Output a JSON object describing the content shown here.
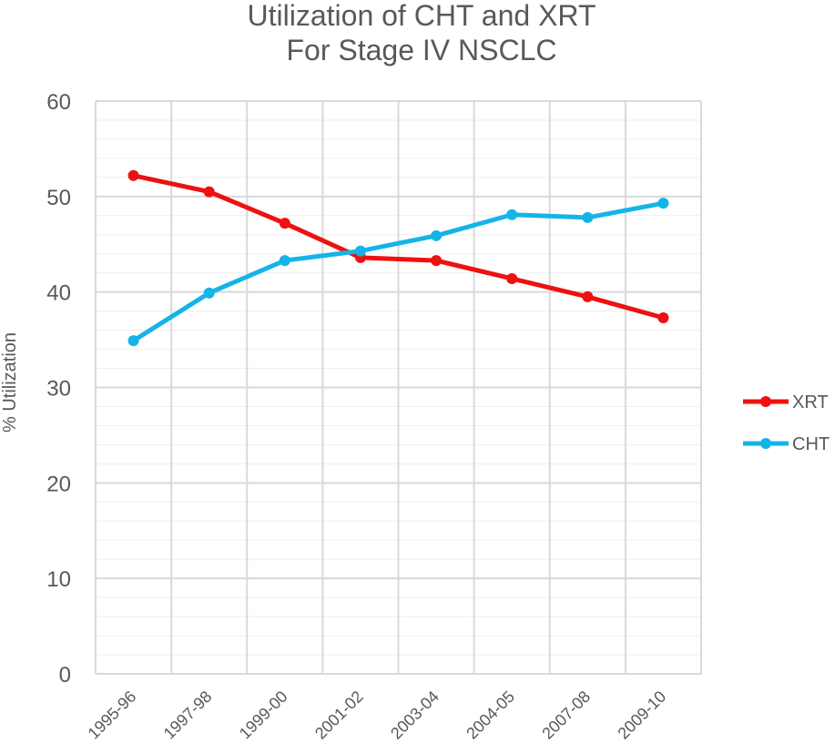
{
  "chart_data": {
    "type": "line",
    "title": "Utilization of CHT and XRT",
    "subtitle": "For Stage IV NSCLC",
    "xlabel": "",
    "ylabel": "% Utilization",
    "categories": [
      "1995-96",
      "1997-98",
      "1999-00",
      "2001-02",
      "2003-04",
      "2004-05",
      "2007-08",
      "2009-10"
    ],
    "ylim": [
      0,
      60
    ],
    "yticks": [
      "0",
      "10",
      "20",
      "30",
      "40",
      "50",
      "60"
    ],
    "grid": true,
    "legend_position": "right",
    "series": [
      {
        "name": "XRT",
        "color": "#ee1111",
        "values": [
          52.2,
          50.5,
          47.2,
          43.6,
          43.3,
          41.4,
          39.5,
          37.3
        ]
      },
      {
        "name": "CHT",
        "color": "#14b4e8",
        "values": [
          34.9,
          39.9,
          43.3,
          44.3,
          45.9,
          48.1,
          47.8,
          49.3
        ]
      }
    ]
  }
}
